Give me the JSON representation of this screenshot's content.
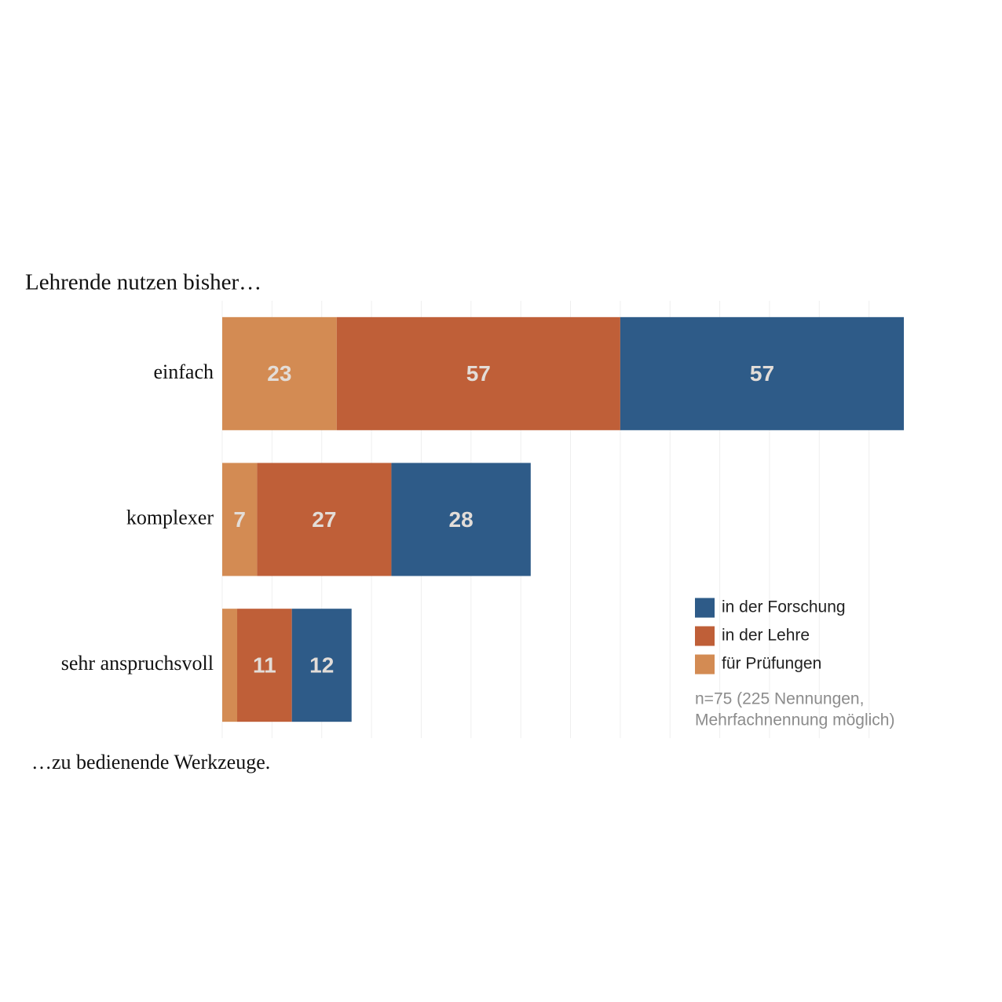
{
  "chart_data": {
    "type": "stacked_hbar",
    "title": "Lehrende nutzen bisher…",
    "caption": "…zu bedienende Werkzeuge.",
    "categories": [
      "einfach",
      "komplexer",
      "sehr anspruchsvoll"
    ],
    "series": [
      {
        "name": "für Prüfungen",
        "color": "#d38b53",
        "values": [
          23,
          7,
          3
        ],
        "value_labels": [
          23,
          7,
          null
        ]
      },
      {
        "name": "in der Lehre",
        "color": "#bf5f38",
        "values": [
          57,
          27,
          11
        ]
      },
      {
        "name": "in der Forschung",
        "color": "#2e5b88",
        "values": [
          57,
          28,
          12
        ]
      }
    ],
    "xlim": [
      0,
      138
    ],
    "xticks": [
      0,
      10,
      20,
      30,
      40,
      50,
      60,
      70,
      80,
      90,
      100,
      110,
      120,
      130
    ],
    "xtick_labels": false,
    "grid": true,
    "note": [
      "n=75 (225 Nennungen,",
      "Mehrfachnennung möglich)"
    ]
  }
}
